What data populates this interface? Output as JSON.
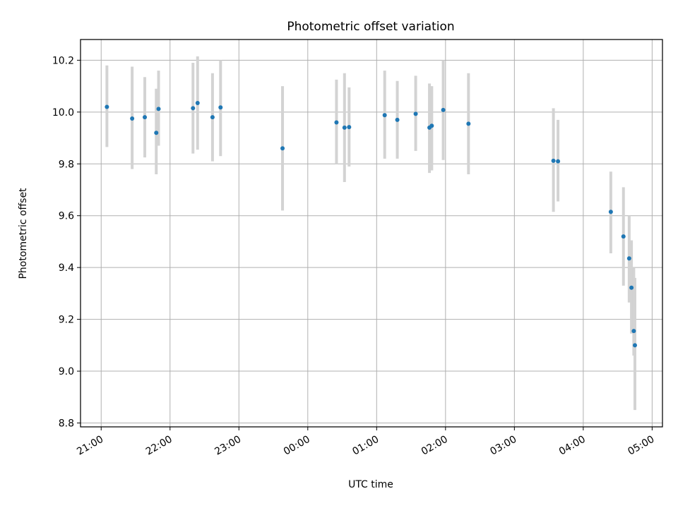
{
  "chart_data": {
    "type": "scatter",
    "title": "Photometric offset variation",
    "xlabel": "UTC time",
    "ylabel": "Photometric offset",
    "x_ticks": [
      "21:00",
      "22:00",
      "23:00",
      "00:00",
      "01:00",
      "02:00",
      "03:00",
      "04:00",
      "05:00"
    ],
    "y_ticks": [
      "8.8",
      "9.0",
      "9.2",
      "9.4",
      "9.6",
      "9.8",
      "10.0",
      "10.2"
    ],
    "y_tick_values": [
      8.8,
      9.0,
      9.2,
      9.4,
      9.6,
      9.8,
      10.0,
      10.2
    ],
    "xlim": [
      "20:42",
      "05:09"
    ],
    "ylim": [
      8.785,
      10.28
    ],
    "grid": true,
    "colors": {
      "points": "#1f77b4",
      "errorbars": "#d3d3d3",
      "grid": "#b0b0b0"
    },
    "points": [
      {
        "x": "21:05",
        "y": 10.02,
        "lo": 9.865,
        "hi": 10.18
      },
      {
        "x": "21:27",
        "y": 9.975,
        "lo": 9.78,
        "hi": 10.175
      },
      {
        "x": "21:38",
        "y": 9.98,
        "lo": 9.825,
        "hi": 10.135
      },
      {
        "x": "21:48",
        "y": 9.92,
        "lo": 9.76,
        "hi": 10.09
      },
      {
        "x": "21:50",
        "y": 10.012,
        "lo": 9.87,
        "hi": 10.16
      },
      {
        "x": "22:20",
        "y": 10.015,
        "lo": 9.84,
        "hi": 10.19
      },
      {
        "x": "22:24",
        "y": 10.035,
        "lo": 9.855,
        "hi": 10.215
      },
      {
        "x": "22:37",
        "y": 9.98,
        "lo": 9.81,
        "hi": 10.15
      },
      {
        "x": "22:44",
        "y": 10.018,
        "lo": 9.83,
        "hi": 10.2
      },
      {
        "x": "23:38",
        "y": 9.86,
        "lo": 9.62,
        "hi": 10.1
      },
      {
        "x": "00:25",
        "y": 9.96,
        "lo": 9.8,
        "hi": 10.125
      },
      {
        "x": "00:32",
        "y": 9.94,
        "lo": 9.73,
        "hi": 10.15
      },
      {
        "x": "00:36",
        "y": 9.942,
        "lo": 9.79,
        "hi": 10.095
      },
      {
        "x": "01:07",
        "y": 9.988,
        "lo": 9.82,
        "hi": 10.16
      },
      {
        "x": "01:18",
        "y": 9.97,
        "lo": 9.82,
        "hi": 10.12
      },
      {
        "x": "01:34",
        "y": 9.993,
        "lo": 9.85,
        "hi": 10.14
      },
      {
        "x": "01:46",
        "y": 9.94,
        "lo": 9.765,
        "hi": 10.11
      },
      {
        "x": "01:48",
        "y": 9.947,
        "lo": 9.775,
        "hi": 10.1
      },
      {
        "x": "01:58",
        "y": 10.008,
        "lo": 9.815,
        "hi": 10.2
      },
      {
        "x": "02:20",
        "y": 9.955,
        "lo": 9.76,
        "hi": 10.15
      },
      {
        "x": "03:34",
        "y": 9.812,
        "lo": 9.615,
        "hi": 10.015
      },
      {
        "x": "03:38",
        "y": 9.81,
        "lo": 9.655,
        "hi": 9.97
      },
      {
        "x": "04:24",
        "y": 9.615,
        "lo": 9.455,
        "hi": 9.77
      },
      {
        "x": "04:35",
        "y": 9.52,
        "lo": 9.33,
        "hi": 9.71
      },
      {
        "x": "04:40",
        "y": 9.435,
        "lo": 9.265,
        "hi": 9.6
      },
      {
        "x": "04:42",
        "y": 9.322,
        "lo": 9.145,
        "hi": 9.505
      },
      {
        "x": "04:44",
        "y": 9.155,
        "lo": 9.06,
        "hi": 9.4
      },
      {
        "x": "04:45",
        "y": 9.1,
        "lo": 8.85,
        "hi": 9.36
      }
    ]
  }
}
